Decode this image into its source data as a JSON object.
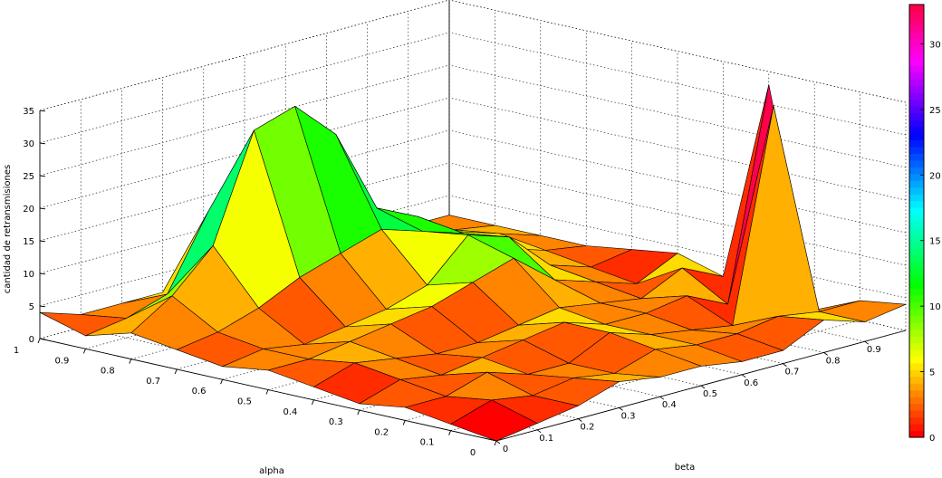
{
  "chart_data": {
    "type": "surface",
    "title": "",
    "xlabel": "beta",
    "ylabel": "alpha",
    "zlabel": "cantidad de retransmisiones",
    "x": [
      0,
      0.1,
      0.2,
      0.3,
      0.4,
      0.5,
      0.6,
      0.7,
      0.8,
      0.9,
      1
    ],
    "y": [
      0,
      0.1,
      0.2,
      0.3,
      0.4,
      0.5,
      0.6,
      0.7,
      0.8,
      0.9,
      1
    ],
    "x_tick_labels": [
      "0",
      "0.1",
      "0.2",
      "0.3",
      "0.4",
      "0.5",
      "0.6",
      "0.7",
      "0.8",
      "0.9"
    ],
    "y_tick_labels": [
      "0",
      "0.1",
      "0.2",
      "0.3",
      "0.4",
      "0.5",
      "0.6",
      "0.7",
      "0.8",
      "0.9",
      "1"
    ],
    "zlim": [
      0,
      35
    ],
    "z_ticks": [
      0,
      5,
      10,
      15,
      20,
      25,
      30,
      35
    ],
    "grid": true,
    "colormap": "hsv",
    "colorbar": {
      "placement": "right",
      "range": [
        0,
        33
      ],
      "ticks": [
        0,
        5,
        10,
        15,
        20,
        25,
        30
      ]
    },
    "z_rows_by_alpha": [
      [
        0,
        1,
        2,
        4,
        3,
        3,
        2,
        2,
        5,
        3,
        4
      ],
      [
        1,
        3,
        2,
        3,
        2,
        4,
        3,
        3,
        4,
        3,
        3
      ],
      [
        2,
        2,
        4,
        2,
        2,
        5,
        3,
        2,
        1,
        33,
        0
      ],
      [
        1,
        3,
        2,
        3,
        4,
        5,
        3,
        3,
        4,
        1,
        33
      ],
      [
        2,
        4,
        3,
        2,
        2,
        3,
        4,
        3,
        2,
        5,
        2
      ],
      [
        3,
        3,
        4,
        5,
        6,
        8,
        10,
        5,
        3,
        1,
        4
      ],
      [
        2,
        3,
        2,
        3,
        4,
        6,
        12,
        10,
        4,
        2,
        3
      ],
      [
        3,
        4,
        6,
        9,
        11,
        13,
        11,
        9,
        5,
        3,
        2
      ],
      [
        4,
        8,
        14,
        30,
        32,
        26,
        13,
        10,
        6,
        4,
        2
      ],
      [
        2,
        3,
        5,
        16,
        22,
        14,
        8,
        8,
        6,
        3,
        2
      ],
      [
        4,
        2,
        2,
        2,
        3,
        2,
        2,
        2,
        2,
        2,
        2
      ]
    ]
  }
}
